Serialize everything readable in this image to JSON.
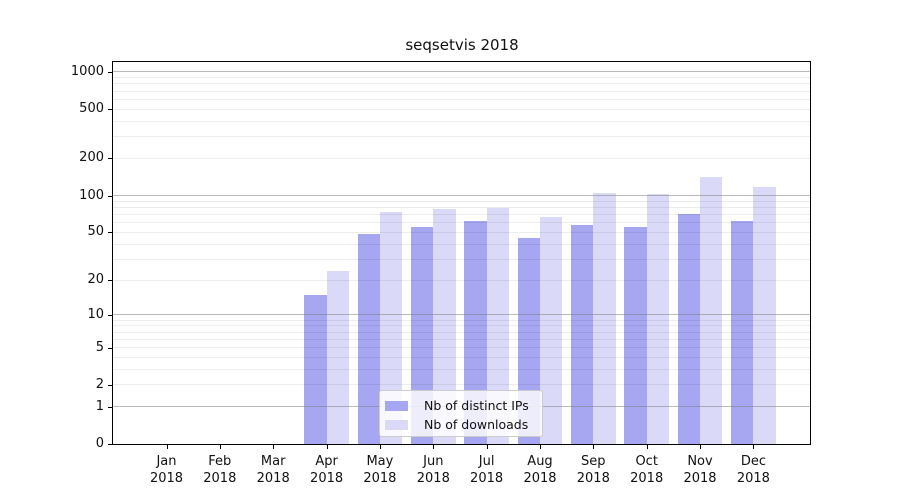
{
  "chart_data": {
    "type": "bar",
    "title": "seqsetvis 2018",
    "categories": [
      "Jan",
      "Feb",
      "Mar",
      "Apr",
      "May",
      "Jun",
      "Jul",
      "Aug",
      "Sep",
      "Oct",
      "Nov",
      "Dec"
    ],
    "category_year": "2018",
    "series": [
      {
        "name": "Nb of distinct IPs",
        "color": "#a6a6f1",
        "values": [
          0,
          0,
          0,
          15,
          48,
          55,
          62,
          45,
          57,
          55,
          70,
          62
        ]
      },
      {
        "name": "Nb of downloads",
        "color": "#dadaf8",
        "values": [
          0,
          0,
          0,
          24,
          74,
          77,
          79,
          67,
          104,
          103,
          142,
          118
        ]
      }
    ],
    "ylabel": "",
    "xlabel": "",
    "yscale": "log10(1+x)",
    "yticks": [
      0,
      1,
      2,
      5,
      10,
      20,
      50,
      100,
      200,
      500,
      1000
    ],
    "major_gridlines": [
      1,
      10,
      100,
      1000
    ],
    "minor_gridlines": [
      3,
      4,
      6,
      7,
      8,
      9,
      30,
      40,
      60,
      70,
      80,
      90,
      300,
      400,
      600,
      700,
      800,
      900
    ],
    "ylim": [
      0,
      1225
    ],
    "grid": true,
    "legend_position": "lower center-left",
    "bar_grouping": "paired, no gap within month"
  },
  "colors": {
    "background": "#ffffff",
    "spine": "#000000",
    "major_grid": "#b5b5b5",
    "minor_grid": "#ededed",
    "text": "#111111",
    "legend_border": "#cccccc"
  }
}
